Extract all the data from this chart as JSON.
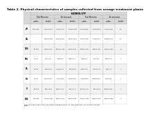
{
  "title": "Table 2. Physical characteristics of samples collected from sewage treatment plants",
  "karnya_label": "KARNYA STP",
  "season_headers": [
    "Post Monsoon",
    "Pre-monsoon",
    "Post Monsoon",
    "Pre-monsoon"
  ],
  "col_headers": [
    "Raw\nSewage",
    "Treated\nEffluent",
    "Raw\nSewage",
    "Treated\nEffluent",
    "Raw\nSewage",
    "Treated\nEffluent",
    "Raw\nSewage",
    "Treated\nEffluent"
  ],
  "row_labels": [
    "pH",
    "DO",
    "TDS",
    "TSS",
    "TA",
    "TH",
    "Cl",
    "SO4"
  ],
  "data_rows": [
    [
      "4.9±0.98",
      "1.50±0.027",
      "7.94±0.047",
      "1.98±0.382",
      "1.30±0.856",
      "1.35±0.263",
      "7.42±0.032",
      "1.6"
    ],
    [
      "",
      "0.82±0.284",
      "1.98±0.925",
      "0.99±0.281",
      "1.33±0.840",
      "0.79±0.40",
      "2.93±0.215",
      "0.4"
    ],
    [
      "±2.347",
      "722±3.992",
      "1643±2.789",
      "673±1.862",
      "1063±1.647",
      "728±2.444",
      "1131±2.893",
      "76"
    ],
    [
      "±0.09",
      "47±0.30",
      "65±0.21",
      "33±0.73",
      "54±0.11",
      "47±0.37",
      "150±1.33",
      "4"
    ],
    [
      "±2.04",
      "180±4.23",
      "241±0.43",
      "180±3.89",
      "195±1.22",
      "181±1.34",
      "82±1.14",
      "2"
    ],
    [
      "±0.19",
      "3.90±0.31",
      "1.82±0.28",
      "3.16±0.63",
      "1.99±0.18",
      "3.86±0.28",
      "0.1±0.68",
      "3"
    ],
    [
      "±1.384",
      "36±1.338",
      "285±1.211",
      "48±1.771",
      "26.2±2.471",
      "36±1.433",
      "330±1.899",
      "2"
    ],
    [
      "±14.983",
      "1.84±1.388",
      "605±11.311",
      "322±0.688",
      "779±14.189",
      "680±1.954",
      "780±14.388",
      "6"
    ]
  ],
  "footer": "TDS=total dissolved solids, TSS=total suspended solids, TA=total alkalinity, TH=dissolved oxygen\n(mg/L)",
  "bg_color": "#ffffff",
  "header_bg": "#d8d8d8",
  "row_bg_even": "#f2f2f2",
  "row_bg_odd": "#ffffff",
  "border_color": "#999999",
  "title_fontsize": 3.0,
  "header_fontsize": 2.2,
  "cell_fontsize": 1.8,
  "footer_fontsize": 1.6
}
